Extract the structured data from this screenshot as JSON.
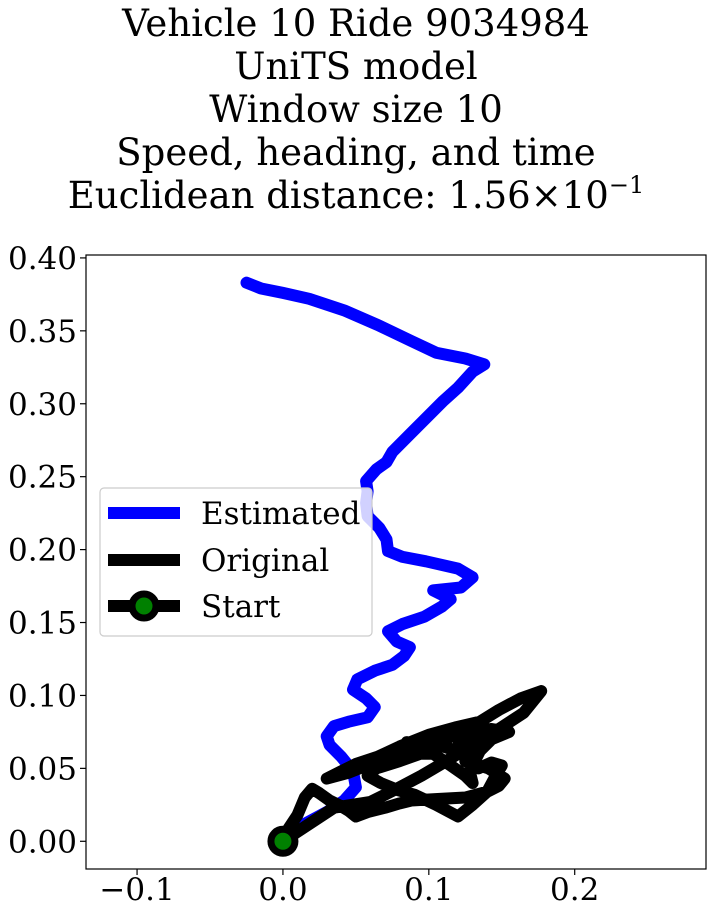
{
  "title_lines": {
    "line1": "Vehicle 10 Ride 9034984",
    "line2": "UniTS model",
    "line3": "Window size 10",
    "line4": "Speed, heading, and time",
    "line5_prefix": "Euclidean distance: 1.56",
    "line5_times": "×",
    "line5_base": "10",
    "line5_exp": "−1"
  },
  "chart_data": {
    "type": "line",
    "title": "Vehicle 10 Ride 9034984 / UniTS model / Window size 10 / Speed, heading, and time / Euclidean distance: 1.56 × 10^-1",
    "xlabel": "",
    "ylabel": "",
    "xlim": [
      -0.135,
      0.29
    ],
    "ylim": [
      -0.019,
      0.402
    ],
    "grid": false,
    "legend_placement": "center-left",
    "x_ticks": [
      -0.1,
      0.0,
      0.1,
      0.2
    ],
    "x_tick_labels": [
      "−0.1",
      "0.0",
      "0.1",
      "0.2"
    ],
    "y_ticks": [
      0.0,
      0.05,
      0.1,
      0.15,
      0.2,
      0.25,
      0.3,
      0.35,
      0.4
    ],
    "y_tick_labels": [
      "0.00",
      "0.05",
      "0.10",
      "0.15",
      "0.20",
      "0.25",
      "0.30",
      "0.35",
      "0.40"
    ],
    "series": [
      {
        "name": "Estimated",
        "color": "#0000ff",
        "points": [
          [
            0.0,
            0.0
          ],
          [
            0.015,
            0.012
          ],
          [
            0.03,
            0.02
          ],
          [
            0.042,
            0.028
          ],
          [
            0.05,
            0.037
          ],
          [
            0.048,
            0.048
          ],
          [
            0.04,
            0.058
          ],
          [
            0.032,
            0.066
          ],
          [
            0.03,
            0.072
          ],
          [
            0.035,
            0.079
          ],
          [
            0.045,
            0.082
          ],
          [
            0.058,
            0.085
          ],
          [
            0.063,
            0.092
          ],
          [
            0.057,
            0.098
          ],
          [
            0.048,
            0.104
          ],
          [
            0.051,
            0.111
          ],
          [
            0.063,
            0.117
          ],
          [
            0.075,
            0.121
          ],
          [
            0.083,
            0.127
          ],
          [
            0.087,
            0.133
          ],
          [
            0.078,
            0.137
          ],
          [
            0.072,
            0.144
          ],
          [
            0.082,
            0.149
          ],
          [
            0.097,
            0.154
          ],
          [
            0.109,
            0.161
          ],
          [
            0.115,
            0.166
          ],
          [
            0.103,
            0.172
          ],
          [
            0.122,
            0.174
          ],
          [
            0.13,
            0.181
          ],
          [
            0.12,
            0.187
          ],
          [
            0.098,
            0.192
          ],
          [
            0.082,
            0.195
          ],
          [
            0.072,
            0.199
          ],
          [
            0.071,
            0.207
          ],
          [
            0.066,
            0.215
          ],
          [
            0.058,
            0.223
          ],
          [
            0.057,
            0.232
          ],
          [
            0.058,
            0.24
          ],
          [
            0.057,
            0.247
          ],
          [
            0.064,
            0.255
          ],
          [
            0.071,
            0.26
          ],
          [
            0.075,
            0.267
          ],
          [
            0.088,
            0.28
          ],
          [
            0.1,
            0.292
          ],
          [
            0.11,
            0.302
          ],
          [
            0.12,
            0.311
          ],
          [
            0.13,
            0.322
          ],
          [
            0.138,
            0.327
          ],
          [
            0.125,
            0.331
          ],
          [
            0.105,
            0.335
          ],
          [
            0.088,
            0.343
          ],
          [
            0.065,
            0.354
          ],
          [
            0.042,
            0.364
          ],
          [
            0.018,
            0.372
          ],
          [
            0.0,
            0.376
          ],
          [
            -0.015,
            0.379
          ],
          [
            -0.025,
            0.383
          ]
        ]
      },
      {
        "name": "Original",
        "color": "#000000",
        "points": [
          [
            0.0,
            0.0
          ],
          [
            0.035,
            0.023
          ],
          [
            0.06,
            0.027
          ],
          [
            0.078,
            0.036
          ],
          [
            0.095,
            0.045
          ],
          [
            0.112,
            0.055
          ],
          [
            0.128,
            0.065
          ],
          [
            0.145,
            0.075
          ],
          [
            0.165,
            0.088
          ],
          [
            0.177,
            0.103
          ],
          [
            0.163,
            0.098
          ],
          [
            0.148,
            0.09
          ],
          [
            0.135,
            0.082
          ],
          [
            0.118,
            0.078
          ],
          [
            0.1,
            0.073
          ],
          [
            0.08,
            0.065
          ],
          [
            0.065,
            0.058
          ],
          [
            0.05,
            0.053
          ],
          [
            0.04,
            0.048
          ],
          [
            0.03,
            0.043
          ],
          [
            0.045,
            0.047
          ],
          [
            0.065,
            0.055
          ],
          [
            0.085,
            0.062
          ],
          [
            0.1,
            0.068
          ],
          [
            0.113,
            0.073
          ],
          [
            0.123,
            0.076
          ],
          [
            0.128,
            0.07
          ],
          [
            0.125,
            0.066
          ],
          [
            0.12,
            0.07
          ],
          [
            0.121,
            0.066
          ],
          [
            0.128,
            0.062
          ],
          [
            0.13,
            0.058
          ],
          [
            0.125,
            0.06
          ],
          [
            0.11,
            0.065
          ],
          [
            0.092,
            0.065
          ],
          [
            0.085,
            0.068
          ],
          [
            0.093,
            0.06
          ],
          [
            0.103,
            0.06
          ],
          [
            0.115,
            0.052
          ],
          [
            0.125,
            0.045
          ],
          [
            0.13,
            0.04
          ],
          [
            0.128,
            0.048
          ],
          [
            0.135,
            0.062
          ],
          [
            0.143,
            0.07
          ],
          [
            0.155,
            0.075
          ],
          [
            0.143,
            0.077
          ],
          [
            0.126,
            0.075
          ],
          [
            0.115,
            0.072
          ],
          [
            0.107,
            0.066
          ],
          [
            0.094,
            0.06
          ],
          [
            0.08,
            0.055
          ],
          [
            0.064,
            0.05
          ],
          [
            0.058,
            0.045
          ],
          [
            0.067,
            0.04
          ],
          [
            0.079,
            0.035
          ],
          [
            0.09,
            0.032
          ],
          [
            0.105,
            0.025
          ],
          [
            0.12,
            0.017
          ],
          [
            0.13,
            0.025
          ],
          [
            0.14,
            0.034
          ],
          [
            0.147,
            0.047
          ],
          [
            0.15,
            0.052
          ],
          [
            0.143,
            0.054
          ],
          [
            0.134,
            0.05
          ],
          [
            0.125,
            0.055
          ],
          [
            0.141,
            0.05
          ],
          [
            0.152,
            0.043
          ],
          [
            0.148,
            0.038
          ],
          [
            0.14,
            0.034
          ],
          [
            0.125,
            0.03
          ],
          [
            0.106,
            0.029
          ],
          [
            0.088,
            0.028
          ],
          [
            0.08,
            0.026
          ],
          [
            0.07,
            0.023
          ],
          [
            0.058,
            0.02
          ],
          [
            0.05,
            0.017
          ],
          [
            0.045,
            0.021
          ],
          [
            0.04,
            0.024
          ],
          [
            0.032,
            0.028
          ],
          [
            0.025,
            0.033
          ],
          [
            0.02,
            0.036
          ],
          [
            0.015,
            0.03
          ],
          [
            0.01,
            0.018
          ],
          [
            0.004,
            0.009
          ],
          [
            0.0,
            0.0
          ]
        ]
      }
    ],
    "start_marker": {
      "name": "Start",
      "x": 0.0,
      "y": 0.0,
      "edge_color": "#000000",
      "face_color": "#008000"
    }
  }
}
